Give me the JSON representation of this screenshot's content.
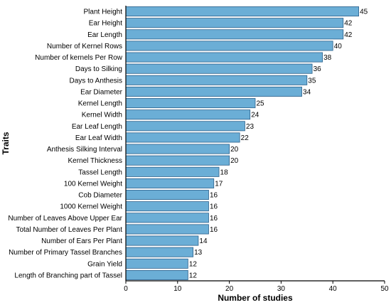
{
  "chart_data": {
    "type": "bar",
    "orientation": "horizontal",
    "categories": [
      "Plant Height",
      "Ear Height",
      "Ear Length",
      "Number of Kernel Rows",
      "Number of kernels Per Row",
      "Days to Silking",
      "Days to Anthesis",
      "Ear Diameter",
      "Kernel Length",
      "Kernel Width",
      "Ear Leaf Length",
      "Ear Leaf Width",
      "Anthesis Silking Interval",
      "Kernel Thickness",
      "Tassel Length",
      "100 Kernel Weight",
      "Cob Diameter",
      "1000 Kernel Weight",
      "Number of Leaves Above Upper Ear",
      "Total Number of Leaves Per Plant",
      "Number of Ears Per Plant",
      "Number of Primary Tassel Branches",
      "Grain Yield",
      "Length of Branching part of Tassel"
    ],
    "values": [
      45,
      42,
      42,
      40,
      38,
      36,
      35,
      34,
      25,
      24,
      23,
      22,
      20,
      20,
      18,
      17,
      16,
      16,
      16,
      16,
      14,
      13,
      12,
      12
    ],
    "xlabel": "Number of studies",
    "ylabel": "Traits",
    "xlim": [
      0,
      50
    ],
    "xticks": [
      0,
      10,
      20,
      30,
      40,
      50
    ],
    "data_labels": true,
    "grid": false,
    "bar_color": "#6baed6",
    "bar_edge_color": "#2a5f8a"
  }
}
